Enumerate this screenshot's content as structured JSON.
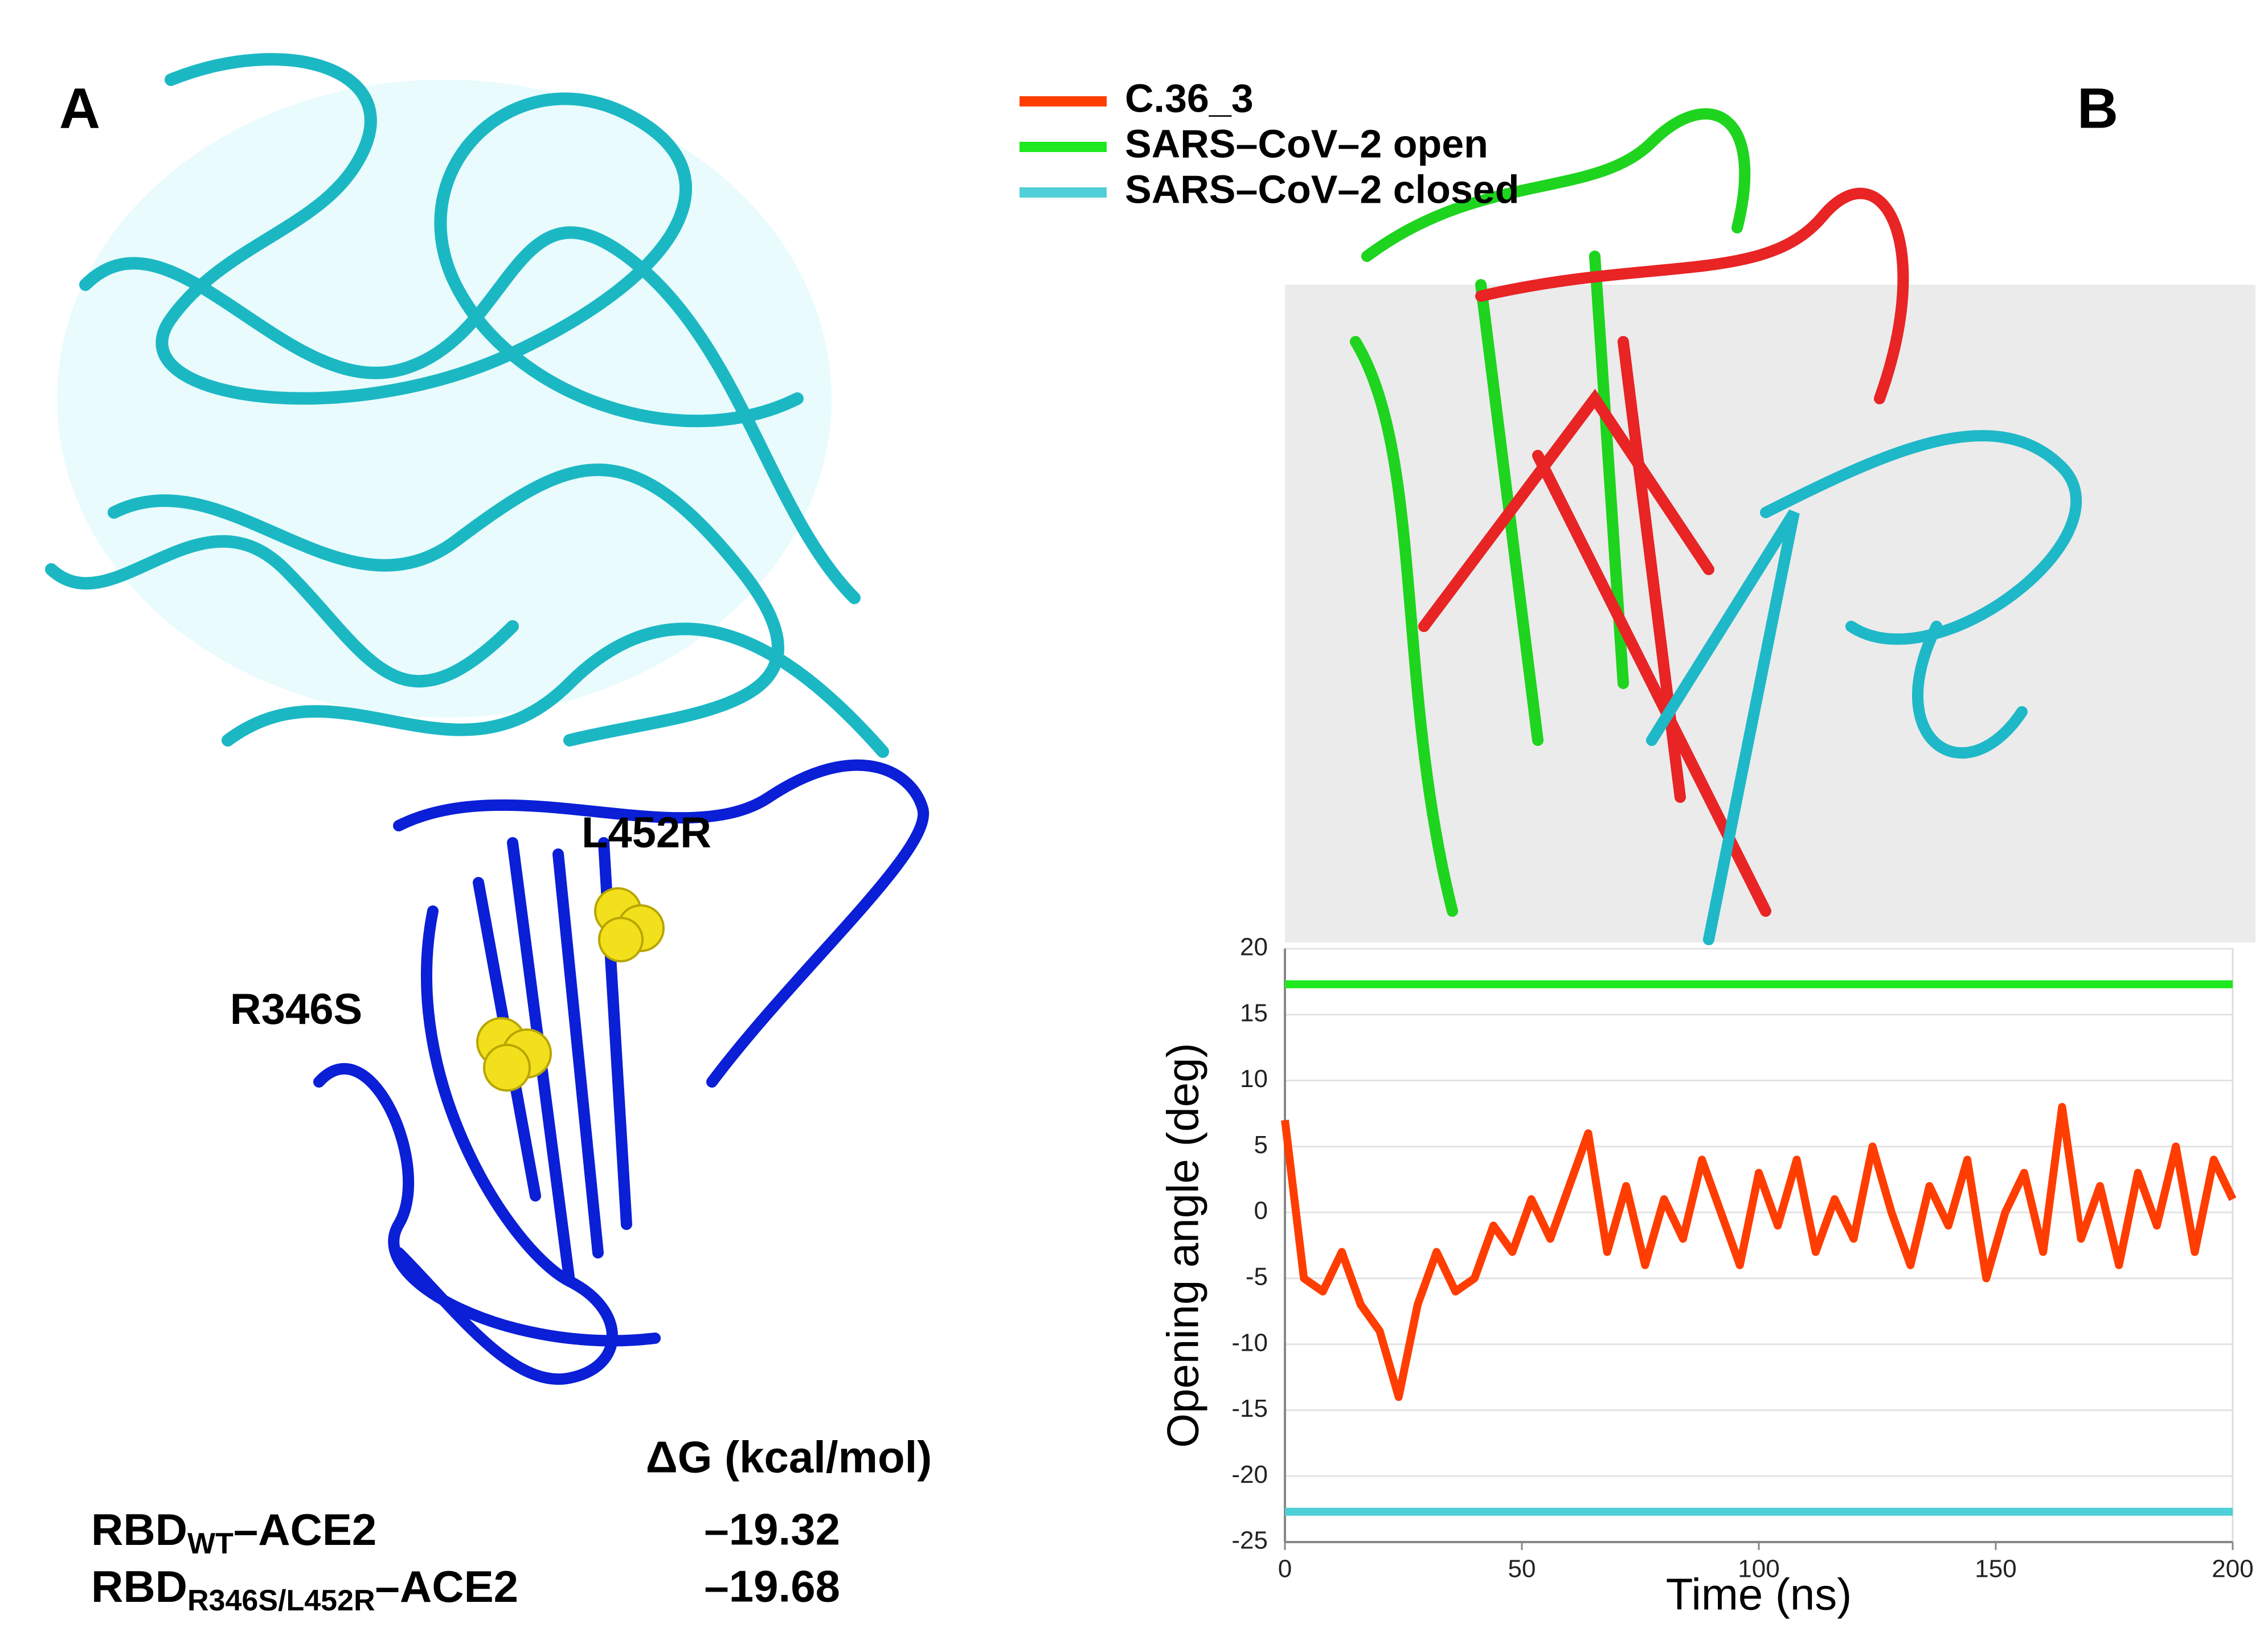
{
  "panel_labels": [
    "A",
    "B"
  ],
  "mutations": [
    "L452R",
    "R346S"
  ],
  "table": {
    "header": "ΔG (kcal/mol)",
    "rows": [
      {
        "prefix": "RBD",
        "subscript": "WT",
        "suffix": "–ACE2",
        "value": "–19.32"
      },
      {
        "prefix": "RBD",
        "subscript": "R346S/L452R",
        "suffix": "–ACE2",
        "value": "–19.68"
      }
    ]
  },
  "chart_data": {
    "type": "line",
    "x_label": "Time (ns)",
    "y_label": "Opening angle (deg)",
    "xlim": [
      0,
      200
    ],
    "xticks": [
      0,
      50,
      100,
      150,
      200
    ],
    "ylim": [
      -25,
      20
    ],
    "yticks": [
      20,
      15,
      10,
      5,
      0,
      -5,
      -10,
      -15,
      -20,
      -25
    ],
    "grid": true,
    "series": [
      {
        "name": "C.36_3",
        "color": "#ff3d00",
        "x": [
          0,
          4,
          8,
          12,
          16,
          20,
          24,
          28,
          32,
          36,
          40,
          44,
          48,
          52,
          56,
          60,
          64,
          68,
          72,
          76,
          80,
          84,
          88,
          92,
          96,
          100,
          104,
          108,
          112,
          116,
          120,
          124,
          128,
          132,
          136,
          140,
          144,
          148,
          152,
          156,
          160,
          164,
          168,
          172,
          176,
          180,
          184,
          188,
          192,
          196,
          200
        ],
        "values": [
          7,
          -5,
          -6,
          -3,
          -7,
          -9,
          -14,
          -7,
          -3,
          -6,
          -5,
          -1,
          -3,
          1,
          -2,
          2,
          6,
          -3,
          2,
          -4,
          1,
          -2,
          4,
          0,
          -4,
          3,
          -1,
          4,
          -3,
          1,
          -2,
          5,
          0,
          -4,
          2,
          -1,
          4,
          -5,
          0,
          3,
          -3,
          8,
          -2,
          2,
          -4,
          3,
          -1,
          5,
          -3,
          4,
          1
        ]
      },
      {
        "name": "SARS–CoV–2 open",
        "color": "#1ee81e",
        "x": [
          0,
          200
        ],
        "values": [
          17.3,
          17.3
        ]
      },
      {
        "name": "SARS–CoV–2 closed",
        "color": "#4fcfd6",
        "x": [
          0,
          200
        ],
        "values": [
          -22.7,
          -22.7
        ]
      }
    ]
  }
}
